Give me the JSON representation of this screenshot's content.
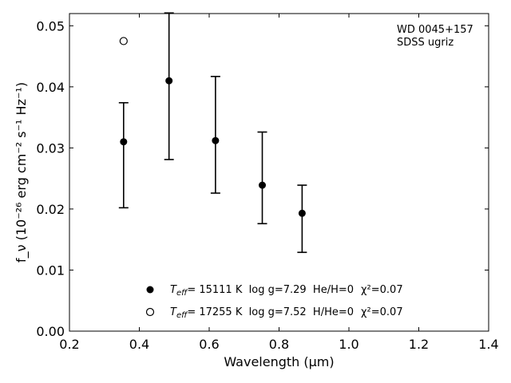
{
  "chart_data": {
    "type": "scatter",
    "xlabel": "Wavelength (μm)",
    "ylabel": "f_ν (10⁻²⁶ erg cm⁻² s⁻¹ Hz⁻¹)",
    "xlim": [
      0.2,
      1.4
    ],
    "ylim": [
      0.0,
      0.052
    ],
    "x_ticks": [
      0.2,
      0.4,
      0.6,
      0.8,
      1.0,
      1.2,
      1.4
    ],
    "x_tick_labels": [
      "0.2",
      "0.4",
      "0.6",
      "0.8",
      "1.0",
      "1.2",
      "1.4"
    ],
    "y_ticks": [
      0.0,
      0.01,
      0.02,
      0.03,
      0.04,
      0.05
    ],
    "y_tick_labels": [
      "0.00",
      "0.01",
      "0.02",
      "0.03",
      "0.04",
      "0.05"
    ],
    "grid": false,
    "annotation": [
      "WD 0045+157",
      "SDSS ugriz"
    ],
    "series": [
      {
        "marker": "filled-circle",
        "x": [
          0.355,
          0.485,
          0.618,
          0.752,
          0.866
        ],
        "y": [
          0.031,
          0.041,
          0.0312,
          0.0239,
          0.0193
        ],
        "yerr_low": [
          0.0202,
          0.0281,
          0.0226,
          0.0176,
          0.0129
        ],
        "yerr_high": [
          0.0374,
          0.0521,
          0.0417,
          0.0326,
          0.0239
        ]
      },
      {
        "marker": "open-circle",
        "x": [
          0.355
        ],
        "y": [
          0.0475
        ]
      }
    ],
    "legend": {
      "placement": "bottom-center",
      "entries": [
        {
          "marker": "filled-circle",
          "teff_symbol": "T",
          "teff_sub": "eff",
          "text": "= 15111 K  log g=7.29  He/H=0",
          "chi_text": "χ²=0.07"
        },
        {
          "marker": "open-circle",
          "teff_symbol": "T",
          "teff_sub": "eff",
          "text": "= 17255 K  log g=7.52  H/He=0",
          "chi_text": "χ²=0.07"
        }
      ]
    }
  }
}
